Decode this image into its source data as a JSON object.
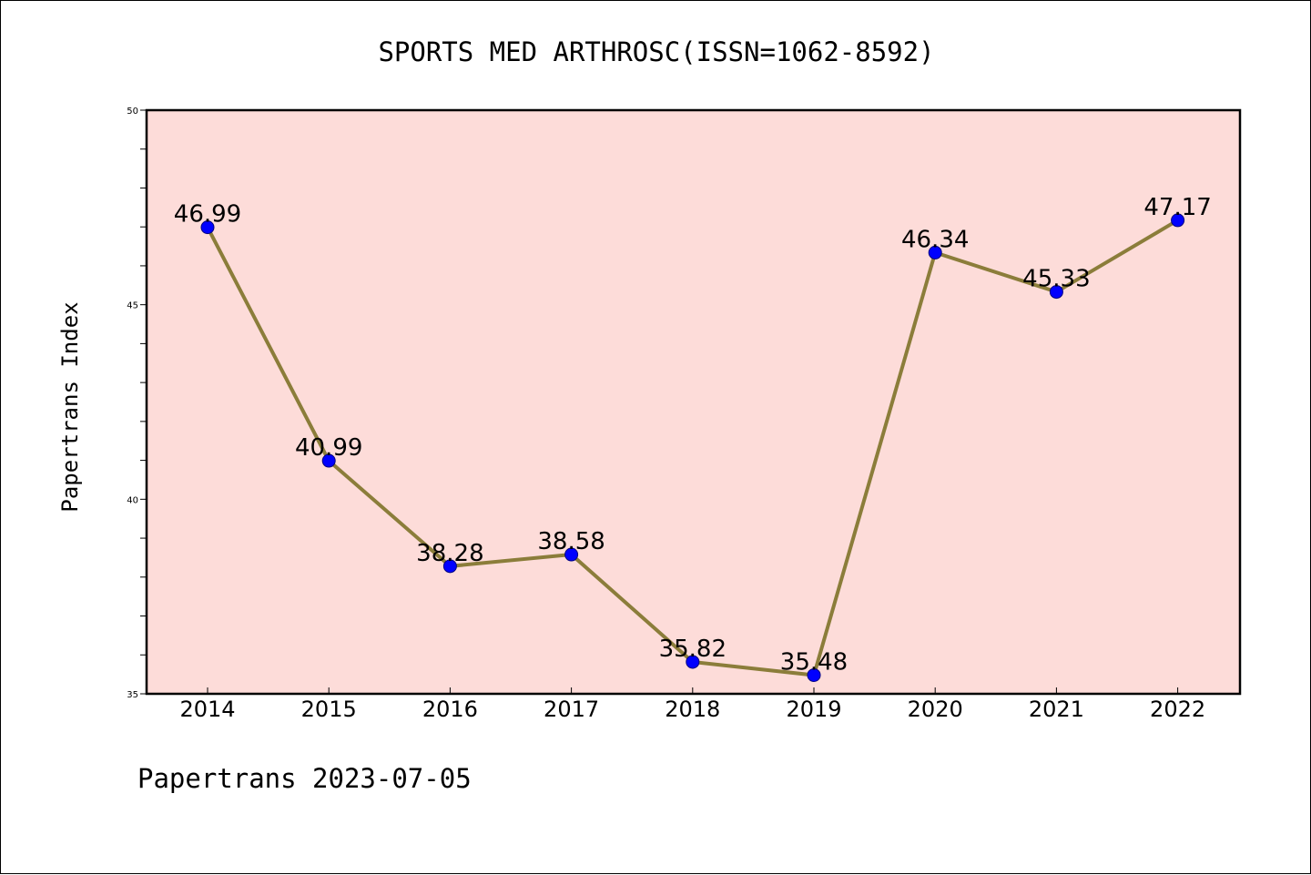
{
  "chart_data": {
    "type": "line",
    "title": "SPORTS MED ARTHROSC(ISSN=1062-8592)",
    "ylabel": "Papertrans Index",
    "xlabel": "",
    "footer": "Papertrans 2023-07-05",
    "categories": [
      "2014",
      "2015",
      "2016",
      "2017",
      "2018",
      "2019",
      "2020",
      "2021",
      "2022"
    ],
    "values": [
      46.99,
      40.99,
      38.28,
      38.58,
      35.82,
      35.48,
      46.34,
      45.33,
      47.17
    ],
    "data_labels": [
      "46.99",
      "40.99",
      "38.28",
      "38.58",
      "35.82",
      "35.48",
      "46.34",
      "45.33",
      "47.17"
    ],
    "ylim": [
      35,
      50
    ],
    "yticks": [
      "35",
      "40",
      "45",
      "50"
    ],
    "grid": false,
    "legend": "none",
    "colors": {
      "plot_background": "#fddcd9",
      "line": "#8b7d3a",
      "marker": "#0000ff",
      "marker_edge": "#000080"
    }
  }
}
